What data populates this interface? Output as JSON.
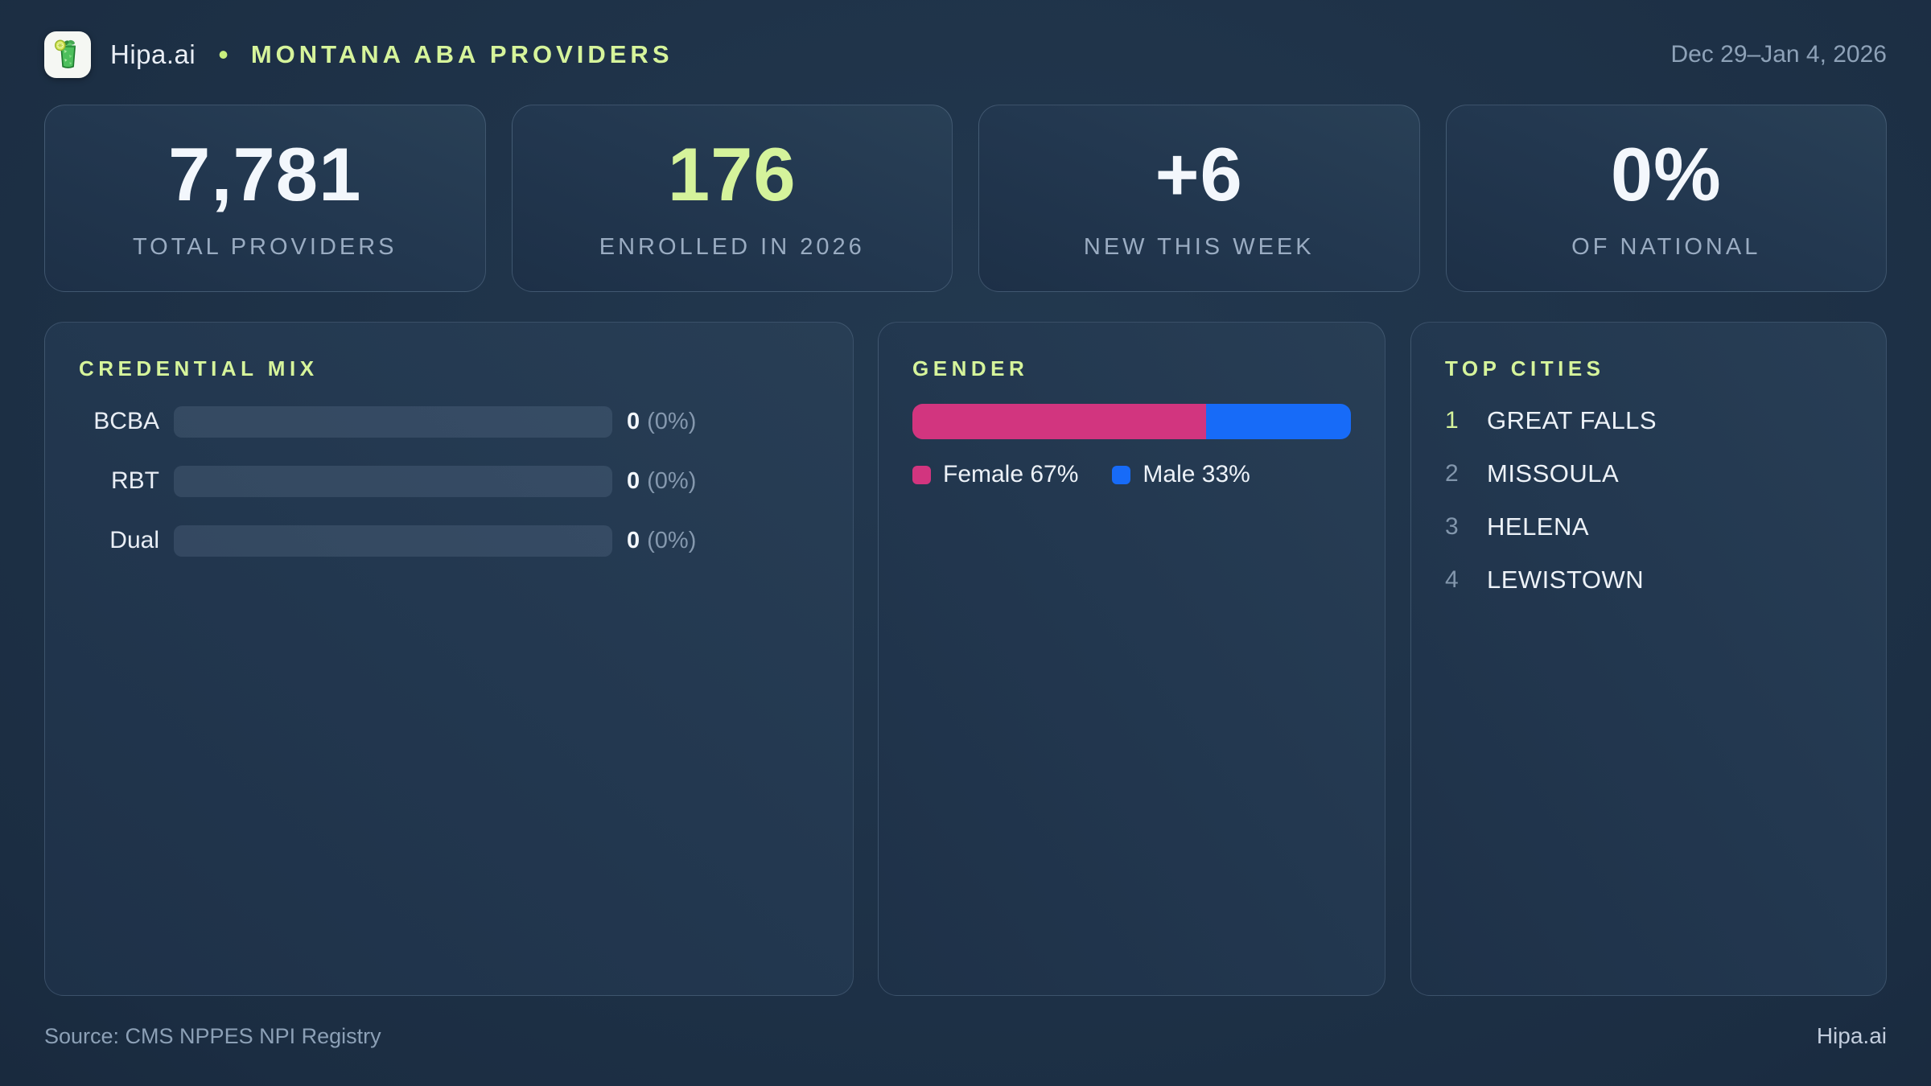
{
  "header": {
    "brand": "Hipa.ai",
    "separator": "•",
    "title": "MONTANA ABA PROVIDERS",
    "date_range": "Dec 29–Jan 4, 2026"
  },
  "stats": [
    {
      "value": "7,781",
      "label": "TOTAL PROVIDERS",
      "accent": false
    },
    {
      "value": "176",
      "label": "ENROLLED IN 2026",
      "accent": true
    },
    {
      "value": "+6",
      "label": "NEW THIS WEEK",
      "accent": false
    },
    {
      "value": "0%",
      "label": "OF NATIONAL",
      "accent": false
    }
  ],
  "credential_mix": {
    "title": "CREDENTIAL MIX",
    "rows": [
      {
        "label": "BCBA",
        "count": "0",
        "percent": "(0%)",
        "fill_pct": 0
      },
      {
        "label": "RBT",
        "count": "0",
        "percent": "(0%)",
        "fill_pct": 0
      },
      {
        "label": "Dual",
        "count": "0",
        "percent": "(0%)",
        "fill_pct": 0
      }
    ]
  },
  "gender": {
    "title": "GENDER",
    "female": {
      "label": "Female 67%",
      "pct": 67,
      "color": "#d2357f"
    },
    "male": {
      "label": "Male 33%",
      "pct": 33,
      "color": "#176bf8"
    }
  },
  "top_cities": {
    "title": "TOP CITIES",
    "items": [
      {
        "rank": "1",
        "name": "GREAT FALLS"
      },
      {
        "rank": "2",
        "name": "MISSOULA"
      },
      {
        "rank": "3",
        "name": "HELENA"
      },
      {
        "rank": "4",
        "name": "LEWISTOWN"
      }
    ]
  },
  "footer": {
    "source": "Source: CMS NPPES NPI Registry",
    "brand": "Hipa.ai"
  },
  "colors": {
    "accent_lime": "#d6f49b",
    "female_pink": "#d2357f",
    "male_blue": "#176bf8",
    "background_dark": "#101b2b",
    "panel_bg": "#233850"
  },
  "chart_data": [
    {
      "type": "bar",
      "orientation": "horizontal",
      "title": "CREDENTIAL MIX",
      "categories": [
        "BCBA",
        "RBT",
        "Dual"
      ],
      "values": [
        0,
        0,
        0
      ],
      "value_labels": [
        "0 (0%)",
        "0 (0%)",
        "0 (0%)"
      ],
      "xlim": [
        0,
        100
      ],
      "grid": false,
      "legend": false
    },
    {
      "type": "bar",
      "orientation": "horizontal-stacked",
      "title": "GENDER",
      "series": [
        {
          "name": "Female",
          "value": 67,
          "color": "#d2357f"
        },
        {
          "name": "Male",
          "value": 33,
          "color": "#176bf8"
        }
      ],
      "unit": "%",
      "legend": true,
      "legend_position": "bottom"
    },
    {
      "type": "table",
      "title": "TOP CITIES",
      "columns": [
        "rank",
        "city"
      ],
      "rows": [
        [
          "1",
          "GREAT FALLS"
        ],
        [
          "2",
          "MISSOULA"
        ],
        [
          "3",
          "HELENA"
        ],
        [
          "4",
          "LEWISTOWN"
        ]
      ]
    }
  ]
}
